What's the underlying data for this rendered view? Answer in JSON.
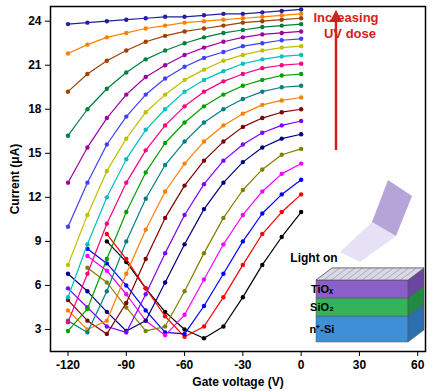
{
  "chart_data": {
    "type": "line",
    "x_label": "Gate voltage (V)",
    "y_label": "Current (μA)",
    "xlim": [
      -129,
      64
    ],
    "ylim": [
      1.5,
      25
    ],
    "xticks": [
      -120,
      -90,
      -60,
      -30,
      0,
      30,
      60
    ],
    "yticks": [
      3,
      6,
      9,
      12,
      15,
      18,
      21,
      24
    ],
    "marker": "circle",
    "line_style": "solid",
    "annotations": [
      "Increasing",
      "UV dose",
      "Light on",
      "TiOₓ",
      "SiO₂",
      "n⁺-Si"
    ],
    "x": [
      -120,
      -110,
      -100,
      -90,
      -80,
      -70,
      -60,
      -50,
      -40,
      -30,
      -20,
      -10,
      0
    ],
    "series": [
      {
        "color": "#000000",
        "values": [
          null,
          null,
          9.0,
          7.6,
          5.8,
          4.2,
          3.0,
          2.4,
          3.2,
          5.2,
          7.4,
          9.3,
          11.0
        ]
      },
      {
        "color": "#ff0000",
        "values": [
          null,
          null,
          9.5,
          7.8,
          5.8,
          3.9,
          2.5,
          3.2,
          5.2,
          7.4,
          9.5,
          11.0,
          12.2
        ]
      },
      {
        "color": "#0000ff",
        "values": [
          null,
          8.5,
          7.5,
          6.0,
          4.3,
          2.8,
          2.7,
          4.6,
          6.8,
          9.0,
          10.9,
          12.2,
          13.2
        ]
      },
      {
        "color": "#ff00ff",
        "values": [
          null,
          8.0,
          7.0,
          5.4,
          3.6,
          2.6,
          4.0,
          6.4,
          8.8,
          10.8,
          12.4,
          13.6,
          14.3
        ]
      },
      {
        "color": "#808000",
        "values": [
          null,
          7.2,
          6.2,
          4.5,
          2.9,
          3.2,
          5.6,
          8.2,
          10.6,
          12.5,
          13.9,
          14.9,
          15.3
        ]
      },
      {
        "color": "#000080",
        "values": [
          6.8,
          5.6,
          4.2,
          2.9,
          3.6,
          6.2,
          8.8,
          11.2,
          13.0,
          14.4,
          15.4,
          16.0,
          16.3
        ]
      },
      {
        "color": "#8000ff",
        "values": [
          5.8,
          4.5,
          3.2,
          2.8,
          5.4,
          8.2,
          10.8,
          12.9,
          14.5,
          15.6,
          16.4,
          16.9,
          17.2
        ]
      },
      {
        "color": "#800000",
        "values": [
          5.0,
          3.6,
          2.7,
          4.8,
          7.8,
          10.6,
          12.8,
          14.5,
          15.8,
          16.8,
          17.4,
          17.8,
          18.0
        ]
      },
      {
        "color": "#ff8000",
        "values": [
          4.3,
          3.0,
          3.6,
          6.8,
          9.8,
          12.4,
          14.3,
          15.8,
          16.9,
          17.7,
          18.3,
          18.6,
          18.8
        ]
      },
      {
        "color": "#008080",
        "values": [
          3.6,
          2.8,
          5.6,
          9.0,
          11.9,
          14.2,
          15.8,
          17.1,
          18.0,
          18.7,
          19.2,
          19.5,
          19.6
        ]
      },
      {
        "color": "#00a000",
        "values": [
          2.9,
          4.4,
          7.8,
          11.0,
          13.7,
          15.7,
          17.1,
          18.2,
          19.0,
          19.6,
          20.0,
          20.3,
          20.4
        ]
      },
      {
        "color": "#ff0080",
        "values": [
          3.5,
          6.8,
          10.2,
          13.0,
          15.2,
          16.9,
          18.2,
          19.2,
          19.9,
          20.4,
          20.8,
          21.0,
          21.1
        ]
      },
      {
        "color": "#00c0c0",
        "values": [
          5.2,
          8.8,
          12.0,
          14.6,
          16.6,
          18.0,
          19.2,
          20.0,
          20.6,
          21.1,
          21.4,
          21.6,
          21.7
        ]
      },
      {
        "color": "#c0c000",
        "values": [
          7.4,
          10.8,
          13.8,
          16.0,
          17.8,
          19.0,
          20.0,
          20.7,
          21.3,
          21.7,
          22.0,
          22.2,
          22.3
        ]
      },
      {
        "color": "#4040ff",
        "values": [
          10.0,
          13.0,
          15.6,
          17.5,
          19.0,
          20.1,
          20.9,
          21.5,
          21.9,
          22.3,
          22.5,
          22.7,
          22.8
        ]
      },
      {
        "color": "#a000a0",
        "values": [
          13.0,
          15.4,
          17.4,
          19.0,
          20.2,
          21.0,
          21.7,
          22.2,
          22.6,
          22.9,
          23.1,
          23.2,
          23.3
        ]
      },
      {
        "color": "#008040",
        "values": [
          16.2,
          18.0,
          19.4,
          20.5,
          21.4,
          22.0,
          22.5,
          22.9,
          23.2,
          23.4,
          23.6,
          23.7,
          23.8
        ]
      },
      {
        "color": "#a04000",
        "values": [
          19.2,
          20.4,
          21.3,
          22.0,
          22.6,
          23.0,
          23.3,
          23.5,
          23.7,
          23.9,
          24.0,
          24.1,
          24.2
        ]
      },
      {
        "color": "#ff8000",
        "values": [
          21.8,
          22.4,
          22.9,
          23.2,
          23.5,
          23.7,
          23.9,
          24.0,
          24.1,
          24.2,
          24.3,
          24.4,
          24.5
        ]
      },
      {
        "color": "#2020a0",
        "values": [
          23.8,
          23.9,
          24.0,
          24.1,
          24.2,
          24.3,
          24.3,
          24.4,
          24.5,
          24.5,
          24.6,
          24.7,
          24.8
        ]
      }
    ]
  }
}
